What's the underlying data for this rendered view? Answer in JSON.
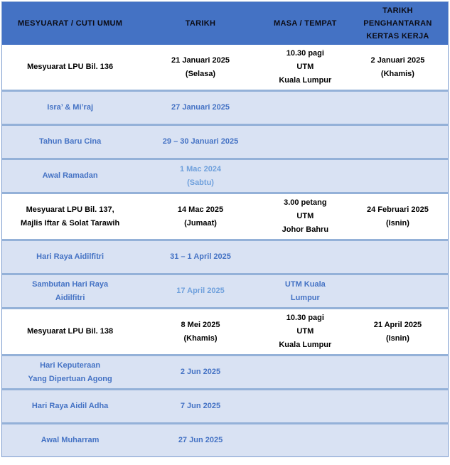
{
  "table": {
    "title_semantic": "jadual-mesyuarat-dan-cuti-umum",
    "accent_color": "#4472C4",
    "alt_row_bg": "#D9E2F3",
    "border_color": "#94B1D8",
    "text_blue": "#4472C4",
    "text_blue_light": "#6FA0DC",
    "columns": [
      "MESYUARAT / CUTI UMUM",
      "TARIKH",
      "MASA / TEMPAT",
      "TARIKH PENGHANTARAN KERTAS KERJA"
    ],
    "rows": [
      {
        "style": "white",
        "cells": [
          {
            "lines": [
              "Mesyuarat LPU Bil. 136"
            ]
          },
          {
            "lines": [
              "21 Januari 2025",
              "(Selasa)"
            ]
          },
          {
            "lines": [
              "10.30 pagi",
              "UTM",
              "Kuala Lumpur"
            ]
          },
          {
            "lines": [
              "2 Januari 2025",
              "(Khamis)"
            ]
          }
        ]
      },
      {
        "style": "blue",
        "cells": [
          {
            "lines": [
              "Isra’ & Mi’raj"
            ]
          },
          {
            "lines": [
              "27 Januari 2025"
            ]
          },
          {
            "lines": []
          },
          {
            "lines": []
          }
        ]
      },
      {
        "style": "blue",
        "cells": [
          {
            "lines": [
              "Tahun Baru Cina"
            ]
          },
          {
            "lines": [
              "29 – 30 Januari 2025"
            ]
          },
          {
            "lines": []
          },
          {
            "lines": []
          }
        ]
      },
      {
        "style": "blue",
        "cells": [
          {
            "lines": [
              "Awal Ramadan"
            ]
          },
          {
            "lines": [
              "1 Mac 2024",
              "(Sabtu)"
            ],
            "light": true
          },
          {
            "lines": []
          },
          {
            "lines": []
          }
        ]
      },
      {
        "style": "white",
        "cells": [
          {
            "lines": [
              "Mesyuarat LPU Bil. 137,",
              "Majlis Iftar & Solat Tarawih"
            ]
          },
          {
            "lines": [
              "14 Mac 2025",
              "(Jumaat)"
            ]
          },
          {
            "lines": [
              "3.00 petang",
              "UTM",
              "Johor Bahru"
            ]
          },
          {
            "lines": [
              "24 Februari 2025",
              "(Isnin)"
            ]
          }
        ]
      },
      {
        "style": "blue",
        "cells": [
          {
            "lines": [
              "Hari Raya Aidilfitri"
            ]
          },
          {
            "lines": [
              "31 – 1 April 2025"
            ]
          },
          {
            "lines": []
          },
          {
            "lines": []
          }
        ]
      },
      {
        "style": "blue",
        "cells": [
          {
            "lines": [
              "Sambutan Hari Raya",
              "Aidilfitri"
            ]
          },
          {
            "lines": [
              "17 April 2025"
            ],
            "light": true
          },
          {
            "lines": [
              "UTM Kuala",
              "Lumpur"
            ]
          },
          {
            "lines": []
          }
        ]
      },
      {
        "style": "white",
        "cells": [
          {
            "lines": [
              "Mesyuarat LPU Bil. 138"
            ]
          },
          {
            "lines": [
              "8 Mei 2025",
              "(Khamis)"
            ]
          },
          {
            "lines": [
              "10.30 pagi",
              "UTM",
              "Kuala Lumpur"
            ]
          },
          {
            "lines": [
              "21 April 2025",
              "(Isnin)"
            ]
          }
        ]
      },
      {
        "style": "blue",
        "cells": [
          {
            "lines": [
              "Hari Keputeraan",
              "Yang Dipertuan Agong"
            ]
          },
          {
            "lines": [
              "2 Jun 2025"
            ]
          },
          {
            "lines": []
          },
          {
            "lines": []
          }
        ]
      },
      {
        "style": "blue",
        "cells": [
          {
            "lines": [
              "Hari Raya Aidil Adha"
            ]
          },
          {
            "lines": [
              "7 Jun 2025"
            ]
          },
          {
            "lines": []
          },
          {
            "lines": []
          }
        ]
      },
      {
        "style": "blue",
        "cells": [
          {
            "lines": [
              "Awal Muharram"
            ]
          },
          {
            "lines": [
              "27 Jun 2025"
            ]
          },
          {
            "lines": []
          },
          {
            "lines": []
          }
        ]
      }
    ]
  }
}
